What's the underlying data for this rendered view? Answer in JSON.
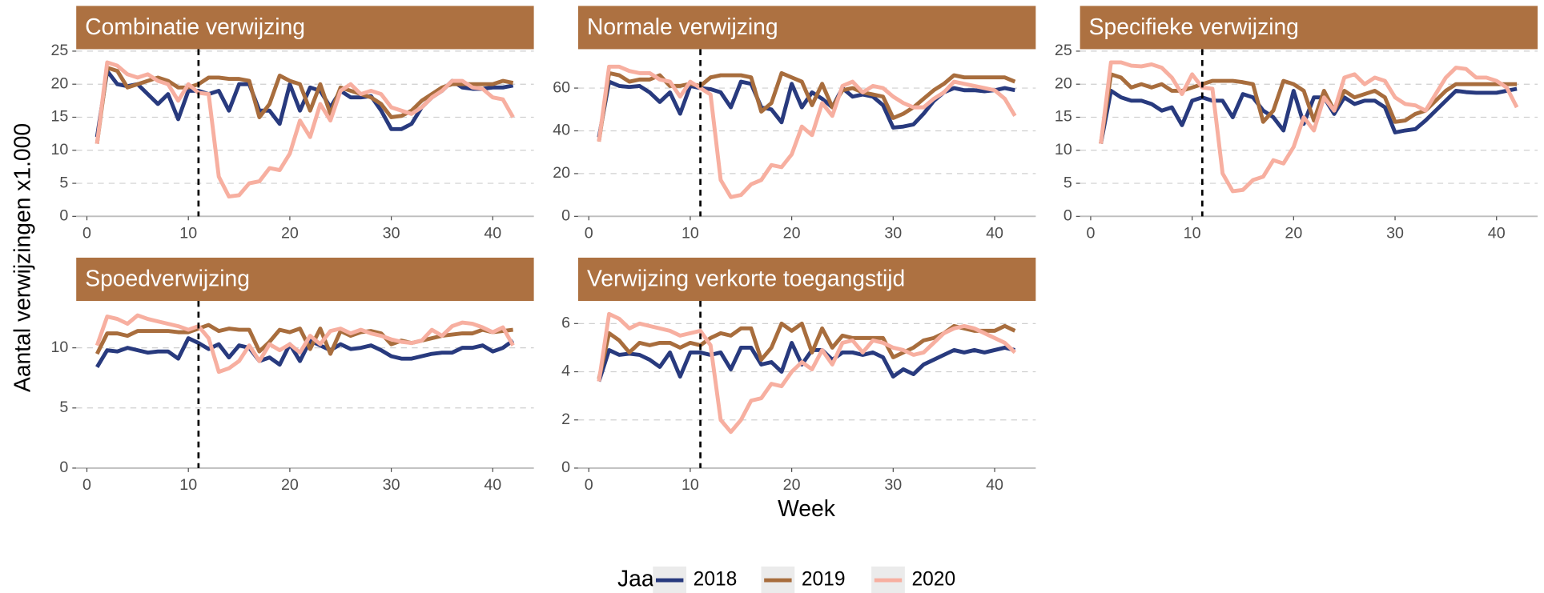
{
  "labels": {
    "y_label": "Aantal verwijzingen x1.000",
    "x_label": "Week",
    "legend_title": "Jaar"
  },
  "chart_data": [
    {
      "type": "line",
      "title": "Combinatie verwijzing",
      "x": [
        1,
        2,
        3,
        4,
        5,
        6,
        7,
        8,
        9,
        10,
        11,
        12,
        13,
        14,
        15,
        16,
        17,
        18,
        19,
        20,
        21,
        22,
        23,
        24,
        25,
        26,
        27,
        28,
        29,
        30,
        31,
        32,
        33,
        34,
        35,
        36,
        37,
        38,
        39,
        40,
        41,
        42
      ],
      "xlim": [
        -1.05,
        44.05
      ],
      "xticks": [
        0,
        10,
        20,
        30,
        40
      ],
      "ylim": [
        0,
        25.3
      ],
      "yticks": [
        0,
        5,
        10,
        15,
        20,
        25
      ],
      "vline": 11,
      "grid": true,
      "series": [
        {
          "name": "2018",
          "color": "#283a7e",
          "values": [
            12,
            22,
            20,
            19.7,
            20,
            18.5,
            17,
            18.5,
            14.7,
            19,
            19,
            18.5,
            19,
            16,
            20,
            20,
            16,
            16,
            14,
            20,
            16,
            19.5,
            19,
            16.5,
            19,
            18,
            18,
            18.2,
            16,
            13.2,
            13.2,
            14,
            16.5,
            18,
            19,
            20.5,
            19.5,
            19.3,
            19.3,
            19.5,
            19.5,
            19.8
          ]
        },
        {
          "name": "2019",
          "color": "#a86d3d",
          "values": [
            11,
            22.5,
            22,
            19.5,
            20,
            20.5,
            21,
            20.5,
            19.5,
            19.5,
            20,
            21,
            21,
            20.8,
            20.8,
            20.5,
            15,
            17,
            21.3,
            20.5,
            20,
            16,
            20,
            15.5,
            19.5,
            19,
            18.5,
            18,
            17,
            15,
            15.2,
            16,
            17.5,
            18.5,
            19.5,
            20,
            20,
            20,
            20,
            20,
            20.5,
            20.2
          ]
        },
        {
          "name": "2020",
          "color": "#f7afa0",
          "values": [
            11,
            23.3,
            22.8,
            21.5,
            21,
            21.5,
            20.5,
            20,
            17.5,
            20,
            18.7,
            18.5,
            6,
            3,
            3.2,
            5,
            5.3,
            7.3,
            7,
            9.5,
            14.5,
            12,
            17,
            14.5,
            19,
            20,
            18.5,
            19,
            18.5,
            16.5,
            16,
            15.5,
            16.5,
            18,
            19,
            20.5,
            20.5,
            19.5,
            19.3,
            18,
            17.7,
            15
          ]
        }
      ]
    },
    {
      "type": "line",
      "title": "Normale verwijzing",
      "x": [
        1,
        2,
        3,
        4,
        5,
        6,
        7,
        8,
        9,
        10,
        11,
        12,
        13,
        14,
        15,
        16,
        17,
        18,
        19,
        20,
        21,
        22,
        23,
        24,
        25,
        26,
        27,
        28,
        29,
        30,
        31,
        32,
        33,
        34,
        35,
        36,
        37,
        38,
        39,
        40,
        41,
        42
      ],
      "xlim": [
        -1.05,
        44.05
      ],
      "xticks": [
        0,
        10,
        20,
        30,
        40
      ],
      "ylim": [
        0,
        78.2
      ],
      "yticks": [
        0,
        20,
        40,
        60
      ],
      "vline": 11,
      "grid": true,
      "series": [
        {
          "name": "2018",
          "color": "#283a7e",
          "values": [
            37,
            63,
            61,
            60.5,
            61,
            58,
            53.5,
            58,
            48,
            61,
            60,
            59.5,
            58,
            51,
            63,
            62,
            51,
            50,
            44,
            62,
            51,
            58,
            55,
            51,
            60,
            56,
            57,
            56,
            52,
            41.5,
            42,
            43,
            48,
            54,
            58,
            60,
            59,
            59,
            58.5,
            59,
            60,
            59
          ]
        },
        {
          "name": "2019",
          "color": "#a86d3d",
          "values": [
            35,
            67,
            66,
            63,
            64,
            64,
            66,
            61,
            61,
            62,
            61,
            65,
            66,
            66,
            66,
            65,
            49,
            53,
            67,
            65,
            63,
            52,
            62,
            51,
            59,
            60,
            58,
            57,
            56,
            46,
            48,
            51,
            55,
            59,
            62,
            66,
            65,
            65,
            65,
            65,
            65,
            63
          ]
        },
        {
          "name": "2020",
          "color": "#f7afa0",
          "values": [
            35,
            70,
            70,
            68,
            67,
            67,
            64,
            63,
            56,
            63,
            60,
            57,
            17,
            9,
            10,
            15,
            17,
            24,
            23,
            29,
            42,
            38,
            53,
            47,
            61,
            63,
            58,
            61,
            60,
            56,
            53,
            51,
            51,
            55,
            58,
            63,
            62,
            61,
            60,
            59,
            55,
            47
          ]
        }
      ]
    },
    {
      "type": "line",
      "title": "Specifieke verwijzing",
      "x": [
        1,
        2,
        3,
        4,
        5,
        6,
        7,
        8,
        9,
        10,
        11,
        12,
        13,
        14,
        15,
        16,
        17,
        18,
        19,
        20,
        21,
        22,
        23,
        24,
        25,
        26,
        27,
        28,
        29,
        30,
        31,
        32,
        33,
        34,
        35,
        36,
        37,
        38,
        39,
        40,
        41,
        42
      ],
      "xlim": [
        -1.05,
        44.05
      ],
      "xticks": [
        0,
        10,
        20,
        30,
        40
      ],
      "ylim": [
        0,
        25.3
      ],
      "yticks": [
        0,
        5,
        10,
        15,
        20,
        25
      ],
      "vline": 11,
      "grid": true,
      "series": [
        {
          "name": "2018",
          "color": "#283a7e",
          "values": [
            11,
            19,
            18,
            17.5,
            17.5,
            17,
            16,
            16.5,
            13.8,
            17.5,
            18,
            17.5,
            17.5,
            15,
            18.5,
            18,
            16,
            15,
            13,
            19,
            14,
            18,
            18,
            15.5,
            18,
            17,
            17.5,
            17.5,
            16.5,
            12.7,
            13,
            13.2,
            14.5,
            16,
            17.5,
            19,
            18.8,
            18.7,
            18.7,
            18.7,
            19,
            19.3
          ]
        },
        {
          "name": "2019",
          "color": "#a86d3d",
          "values": [
            11,
            21.5,
            21,
            19.5,
            20,
            19.5,
            20,
            19,
            19,
            19.5,
            20,
            20.5,
            20.5,
            20.5,
            20.3,
            20,
            14.3,
            16,
            20.5,
            20,
            19,
            14.5,
            19,
            16,
            19,
            18,
            18.5,
            19,
            18,
            14.3,
            14.5,
            15.5,
            16,
            17.5,
            19,
            20,
            20,
            20,
            20,
            20,
            20,
            20
          ]
        },
        {
          "name": "2020",
          "color": "#f7afa0",
          "values": [
            11,
            23.3,
            23.3,
            22.8,
            22.7,
            23,
            22.5,
            21,
            18.5,
            21.5,
            19.5,
            19.3,
            6.5,
            3.8,
            4,
            5.5,
            6,
            8.5,
            8,
            10.5,
            15,
            13,
            18,
            16,
            21,
            21.5,
            20,
            21,
            20.5,
            18,
            17,
            16.8,
            16,
            18.5,
            21,
            22.5,
            22.3,
            21,
            21,
            20.5,
            19.5,
            16.5
          ]
        }
      ]
    },
    {
      "type": "line",
      "title": "Spoedverwijzing",
      "x": [
        1,
        2,
        3,
        4,
        5,
        6,
        7,
        8,
        9,
        10,
        11,
        12,
        13,
        14,
        15,
        16,
        17,
        18,
        19,
        20,
        21,
        22,
        23,
        24,
        25,
        26,
        27,
        28,
        29,
        30,
        31,
        32,
        33,
        34,
        35,
        36,
        37,
        38,
        39,
        40,
        41,
        42
      ],
      "xlim": [
        -1.05,
        44.05
      ],
      "xticks": [
        0,
        10,
        20,
        30,
        40
      ],
      "ylim": [
        0,
        13.9
      ],
      "yticks": [
        0,
        5,
        10
      ],
      "vline": 11,
      "grid": true,
      "series": [
        {
          "name": "2018",
          "color": "#283a7e",
          "values": [
            8.4,
            9.8,
            9.7,
            10,
            9.8,
            9.6,
            9.7,
            9.7,
            9.1,
            10.8,
            10.4,
            9.9,
            10.3,
            9.2,
            10.2,
            10,
            8.9,
            9.2,
            8.6,
            10.3,
            8.9,
            10.6,
            10.2,
            9.8,
            10.3,
            9.9,
            10,
            10.2,
            9.8,
            9.3,
            9.1,
            9.1,
            9.3,
            9.5,
            9.6,
            9.6,
            10,
            10,
            10.2,
            9.7,
            10,
            10.6
          ]
        },
        {
          "name": "2019",
          "color": "#a86d3d",
          "values": [
            9.5,
            11.2,
            11.2,
            11,
            11.4,
            11.4,
            11.4,
            11.4,
            11.3,
            11.3,
            11.6,
            11.9,
            11.4,
            11.6,
            11.5,
            11.5,
            9.7,
            10.5,
            11.5,
            11.3,
            11.6,
            9.9,
            11.6,
            9.5,
            11.4,
            11,
            11.3,
            11.4,
            11.2,
            10.3,
            10.6,
            10.4,
            10.6,
            10.8,
            11,
            11.1,
            11.2,
            11.2,
            11.5,
            11.3,
            11.4,
            11.5
          ]
        },
        {
          "name": "2020",
          "color": "#f7afa0",
          "values": [
            10.2,
            12.6,
            12.4,
            12,
            12.7,
            12.4,
            12.2,
            12,
            11.8,
            11.5,
            11.8,
            10.8,
            8,
            8.3,
            8.9,
            10.2,
            8.9,
            10.3,
            9.8,
            10.3,
            9.6,
            11,
            10.3,
            11.4,
            11.6,
            11.2,
            11.5,
            11.2,
            11,
            10.7,
            10.5,
            10.4,
            10.6,
            11.5,
            11,
            11.8,
            12.1,
            12,
            11.7,
            11.3,
            11.7,
            10.2
          ]
        }
      ]
    },
    {
      "type": "line",
      "title": "Verwijzing verkorte toegangstijd",
      "x": [
        1,
        2,
        3,
        4,
        5,
        6,
        7,
        8,
        9,
        10,
        11,
        12,
        13,
        14,
        15,
        16,
        17,
        18,
        19,
        20,
        21,
        22,
        23,
        24,
        25,
        26,
        27,
        28,
        29,
        30,
        31,
        32,
        33,
        34,
        35,
        36,
        37,
        38,
        39,
        40,
        41,
        42
      ],
      "xlim": [
        -1.05,
        44.05
      ],
      "xticks": [
        0,
        10,
        20,
        30,
        40
      ],
      "ylim": [
        0,
        6.94
      ],
      "yticks": [
        0,
        2,
        4,
        6
      ],
      "vline": 11,
      "grid": true,
      "series": [
        {
          "name": "2018",
          "color": "#283a7e",
          "values": [
            3.6,
            4.9,
            4.7,
            4.75,
            4.7,
            4.5,
            4.2,
            4.8,
            3.8,
            4.8,
            4.8,
            4.7,
            4.8,
            4.1,
            5,
            5,
            4.3,
            4.4,
            4,
            5.2,
            4.3,
            4.9,
            4.9,
            4.5,
            4.8,
            4.8,
            4.7,
            4.8,
            4.6,
            3.8,
            4.1,
            3.9,
            4.3,
            4.5,
            4.7,
            4.9,
            4.8,
            4.9,
            4.8,
            4.9,
            5,
            4.9
          ]
        },
        {
          "name": "2019",
          "color": "#a86d3d",
          "values": [
            3.7,
            5.6,
            5.3,
            4.8,
            5.2,
            5.1,
            5.2,
            5.2,
            5,
            5.2,
            5.1,
            5.4,
            5.6,
            5.5,
            5.8,
            5.8,
            4.5,
            5,
            6,
            5.7,
            6,
            4.8,
            5.8,
            5,
            5.5,
            5.4,
            5.4,
            5.4,
            5.4,
            4.6,
            4.8,
            5,
            5.3,
            5.4,
            5.6,
            5.9,
            5.8,
            5.7,
            5.7,
            5.7,
            5.9,
            5.7
          ]
        },
        {
          "name": "2020",
          "color": "#f7afa0",
          "values": [
            3.6,
            6.4,
            6.2,
            5.8,
            6,
            5.9,
            5.8,
            5.7,
            5.5,
            5.6,
            5.7,
            5.1,
            2,
            1.5,
            2,
            2.8,
            2.9,
            3.5,
            3.4,
            4,
            4.4,
            4.1,
            4.9,
            4.3,
            5.2,
            5.3,
            4.8,
            5.3,
            5.2,
            5,
            4.9,
            4.7,
            4.8,
            5.2,
            5.6,
            5.8,
            5.9,
            5.8,
            5.6,
            5.4,
            5.2,
            4.8
          ]
        }
      ]
    }
  ]
}
